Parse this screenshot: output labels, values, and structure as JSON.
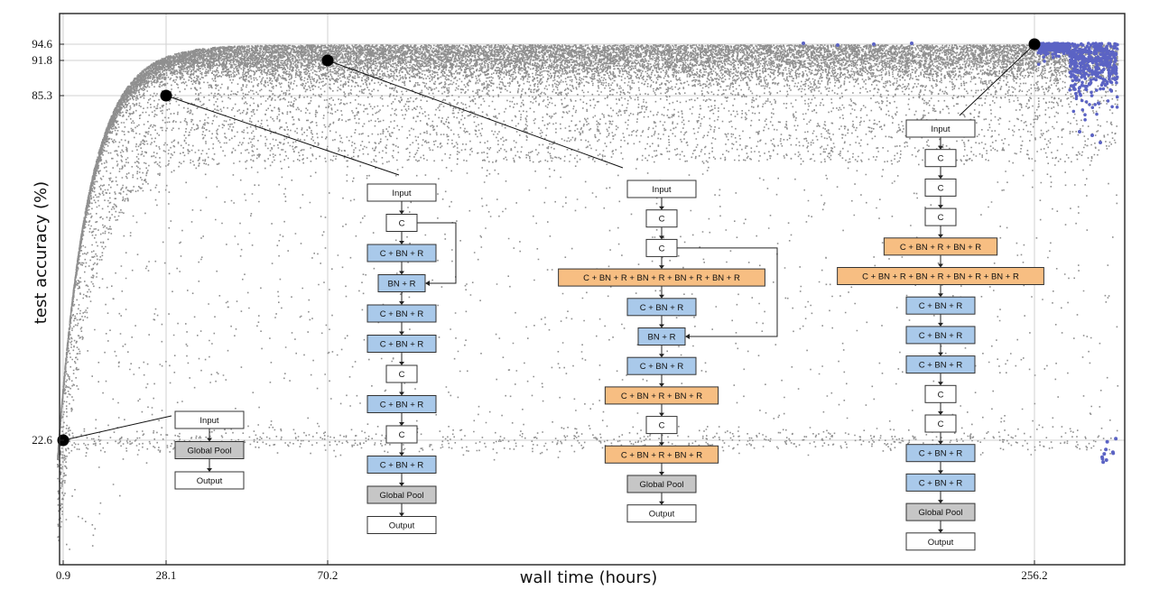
{
  "chart_data": {
    "type": "scatter",
    "title": "",
    "xlabel": "wall time (hours)",
    "ylabel": "test accuracy (%)",
    "x_ticks": [
      0.9,
      28.1,
      70.2,
      256.2
    ],
    "x_tick_labels": [
      "0.9",
      "28.1",
      "70.2",
      "256.2"
    ],
    "y_ticks": [
      22.6,
      85.3,
      91.8,
      94.6
    ],
    "y_tick_labels": [
      "22.6",
      "85.3",
      "91.8",
      "94.6"
    ],
    "xlim": [
      0,
      280
    ],
    "grid": true,
    "colors": {
      "population": "#8f8f8f",
      "final": "#5b63c4",
      "highlight": "#000000",
      "conv_box": "#ffffff",
      "bn_box": "#a9c9ea",
      "multi_box": "#f7be82",
      "pool_box": "#c6c6c6"
    },
    "highlighted_points": [
      {
        "x": 0.9,
        "y": 22.6
      },
      {
        "x": 28.1,
        "y": 85.3
      },
      {
        "x": 70.2,
        "y": 91.8
      },
      {
        "x": 256.2,
        "y": 94.6
      }
    ],
    "architectures": [
      {
        "point": 0,
        "layers": [
          {
            "label": "Input",
            "kind": "io"
          },
          {
            "label": "Global Pool",
            "kind": "pool"
          },
          {
            "label": "Output",
            "kind": "io"
          }
        ]
      },
      {
        "point": 1,
        "layers": [
          {
            "label": "Input",
            "kind": "io"
          },
          {
            "label": "C",
            "kind": "conv"
          },
          {
            "label": "C + BN + R",
            "kind": "bn"
          },
          {
            "label": "BN + R",
            "kind": "bn"
          },
          {
            "label": "C + BN + R",
            "kind": "bn"
          },
          {
            "label": "C + BN + R",
            "kind": "bn"
          },
          {
            "label": "C",
            "kind": "conv"
          },
          {
            "label": "C + BN + R",
            "kind": "bn"
          },
          {
            "label": "C",
            "kind": "conv"
          },
          {
            "label": "C + BN + R",
            "kind": "bn"
          },
          {
            "label": "Global Pool",
            "kind": "pool"
          },
          {
            "label": "Output",
            "kind": "io"
          }
        ],
        "skip": [
          1,
          3
        ]
      },
      {
        "point": 2,
        "layers": [
          {
            "label": "Input",
            "kind": "io"
          },
          {
            "label": "C",
            "kind": "conv"
          },
          {
            "label": "C",
            "kind": "conv"
          },
          {
            "label": "C + BN + R + BN + R + BN + R + BN + R",
            "kind": "multi"
          },
          {
            "label": "C + BN + R",
            "kind": "bn"
          },
          {
            "label": "BN + R",
            "kind": "bn"
          },
          {
            "label": "C + BN + R",
            "kind": "bn"
          },
          {
            "label": "C + BN + R + BN + R",
            "kind": "multi"
          },
          {
            "label": "C",
            "kind": "conv"
          },
          {
            "label": "C + BN + R + BN + R",
            "kind": "multi"
          },
          {
            "label": "Global Pool",
            "kind": "pool"
          },
          {
            "label": "Output",
            "kind": "io"
          }
        ],
        "skip": [
          2,
          5
        ]
      },
      {
        "point": 3,
        "layers": [
          {
            "label": "Input",
            "kind": "io"
          },
          {
            "label": "C",
            "kind": "conv"
          },
          {
            "label": "C",
            "kind": "conv"
          },
          {
            "label": "C",
            "kind": "conv"
          },
          {
            "label": "C + BN + R + BN + R",
            "kind": "multi"
          },
          {
            "label": "C + BN + R + BN + R + BN + R + BN + R",
            "kind": "multi"
          },
          {
            "label": "C + BN + R",
            "kind": "bn"
          },
          {
            "label": "C + BN + R",
            "kind": "bn"
          },
          {
            "label": "C + BN + R",
            "kind": "bn"
          },
          {
            "label": "C",
            "kind": "conv"
          },
          {
            "label": "C",
            "kind": "conv"
          },
          {
            "label": "C + BN + R",
            "kind": "bn"
          },
          {
            "label": "C + BN + R",
            "kind": "bn"
          },
          {
            "label": "Global Pool",
            "kind": "pool"
          },
          {
            "label": "Output",
            "kind": "io"
          }
        ]
      }
    ]
  }
}
